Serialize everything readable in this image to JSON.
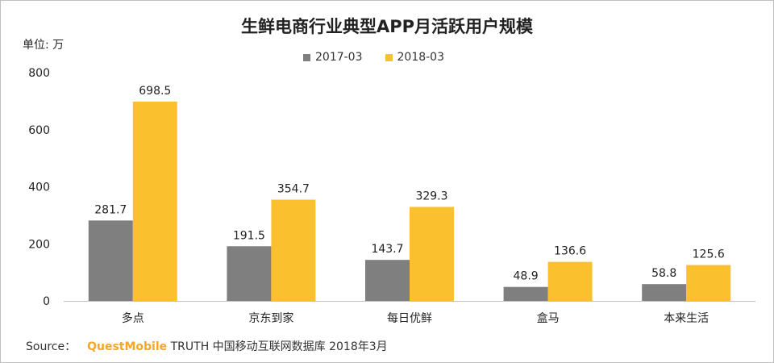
{
  "chart_data": {
    "type": "bar",
    "title": "生鲜电商行业典型APP月活跃用户规模",
    "unit": "单位: 万",
    "categories": [
      "多点",
      "京东到家",
      "每日优鲜",
      "盒马",
      "本来生活"
    ],
    "series": [
      {
        "name": "2017-03",
        "color": "#7f7f7f",
        "values": [
          281.7,
          191.5,
          143.7,
          48.9,
          58.8
        ]
      },
      {
        "name": "2018-03",
        "color": "#fbc02d",
        "values": [
          698.5,
          354.7,
          329.3,
          136.6,
          125.6
        ]
      }
    ],
    "yticks": [
      0,
      200,
      400,
      600,
      800
    ],
    "ylim": [
      0,
      800
    ],
    "grid": false,
    "legend_position": "top"
  },
  "source": {
    "prefix": "Source：",
    "brand": "QuestMobile",
    "text": "TRUTH 中国移动互联网数据库 2018年3月"
  }
}
